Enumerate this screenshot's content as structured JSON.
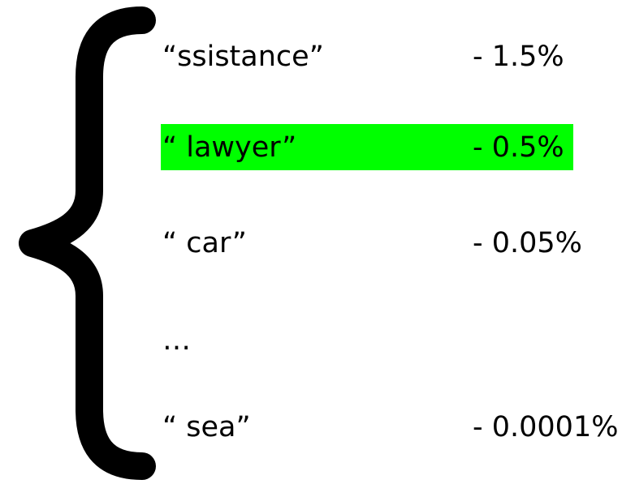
{
  "tokens": [
    {
      "label": "“ssistance”",
      "prob": "- 1.5%",
      "highlighted": false
    },
    {
      "label": "“ lawyer”",
      "prob": "- 0.5%",
      "highlighted": true
    },
    {
      "label": "“ car”",
      "prob": "- 0.05%",
      "highlighted": false
    },
    {
      "label": "…",
      "prob": "",
      "highlighted": false
    },
    {
      "label": "“ sea”",
      "prob": "- 0.0001%",
      "highlighted": false
    }
  ],
  "colors": {
    "highlight": "#00ff00",
    "text": "#000000",
    "brace": "#000000"
  }
}
